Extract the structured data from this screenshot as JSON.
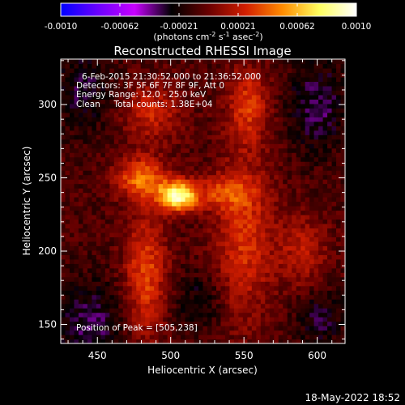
{
  "chart_data": {
    "type": "heatmap",
    "title": "Reconstructed RHESSI Image",
    "xlabel": "Heliocentric X (arcsec)",
    "ylabel": "Heliocentric Y (arcsec)",
    "xlim": [
      425,
      619
    ],
    "ylim": [
      137,
      331
    ],
    "xticks": [
      450,
      500,
      550,
      600
    ],
    "yticks": [
      150,
      200,
      250,
      300
    ],
    "annotations": [
      "6-Feb-2015 21:30:52.000 to 21:36:52.000",
      "Detectors: 3F 5F 6F 7F 8F 9F, Att 0",
      "Energy Range: 12.0 - 25.0 keV",
      "Clean     Total counts: 1.38E+04"
    ],
    "peak_label": "Position of Peak = [505,238]",
    "peak": {
      "x": 505,
      "y": 238
    },
    "colorbar": {
      "ticks": [
        "-0.0010",
        "-0.00062",
        "-0.00021",
        "0.00021",
        "0.00062",
        "0.0010"
      ],
      "range": [
        -0.001,
        0.001
      ],
      "unit_text": "(photons cm",
      "unit_sup1": "-2",
      "unit_mid": " s",
      "unit_sup2": "-1",
      "unit_end": " asec",
      "unit_sup3": "-2",
      "unit_close": ")",
      "colors": [
        "#0000ff",
        "#6a00ff",
        "#c800ff",
        "#000000",
        "#6a0000",
        "#d21e00",
        "#ff8c00",
        "#ffff60",
        "#ffffff"
      ]
    },
    "sources": [
      {
        "x": 505,
        "y": 238,
        "value": 0.00095,
        "sx": 9,
        "sy": 7
      },
      {
        "x": 480,
        "y": 250,
        "value": 0.0005,
        "sx": 12,
        "sy": 10
      },
      {
        "x": 487,
        "y": 295,
        "value": 0.0003,
        "sx": 14,
        "sy": 14
      },
      {
        "x": 483,
        "y": 185,
        "value": 0.0004,
        "sx": 10,
        "sy": 30
      },
      {
        "x": 553,
        "y": 300,
        "value": 0.00035,
        "sx": 10,
        "sy": 18
      },
      {
        "x": 550,
        "y": 210,
        "value": 0.00035,
        "sx": 14,
        "sy": 40
      },
      {
        "x": 590,
        "y": 200,
        "value": 0.00025,
        "sx": 12,
        "sy": 18
      },
      {
        "x": 535,
        "y": 240,
        "value": 0.0003,
        "sx": 14,
        "sy": 8
      }
    ],
    "background_level": -0.00022,
    "background_regions": [
      {
        "x": 440,
        "y": 310,
        "value": -0.0002,
        "sx": 14,
        "sy": 20
      },
      {
        "x": 445,
        "y": 150,
        "value": -0.00025,
        "sx": 16,
        "sy": 20
      },
      {
        "x": 600,
        "y": 300,
        "value": -0.00025,
        "sx": 14,
        "sy": 22
      },
      {
        "x": 520,
        "y": 165,
        "value": -0.00018,
        "sx": 12,
        "sy": 14
      },
      {
        "x": 602,
        "y": 155,
        "value": -0.0002,
        "sx": 12,
        "sy": 14
      }
    ]
  },
  "footer": {
    "timestamp": "18-May-2022 18:52"
  }
}
